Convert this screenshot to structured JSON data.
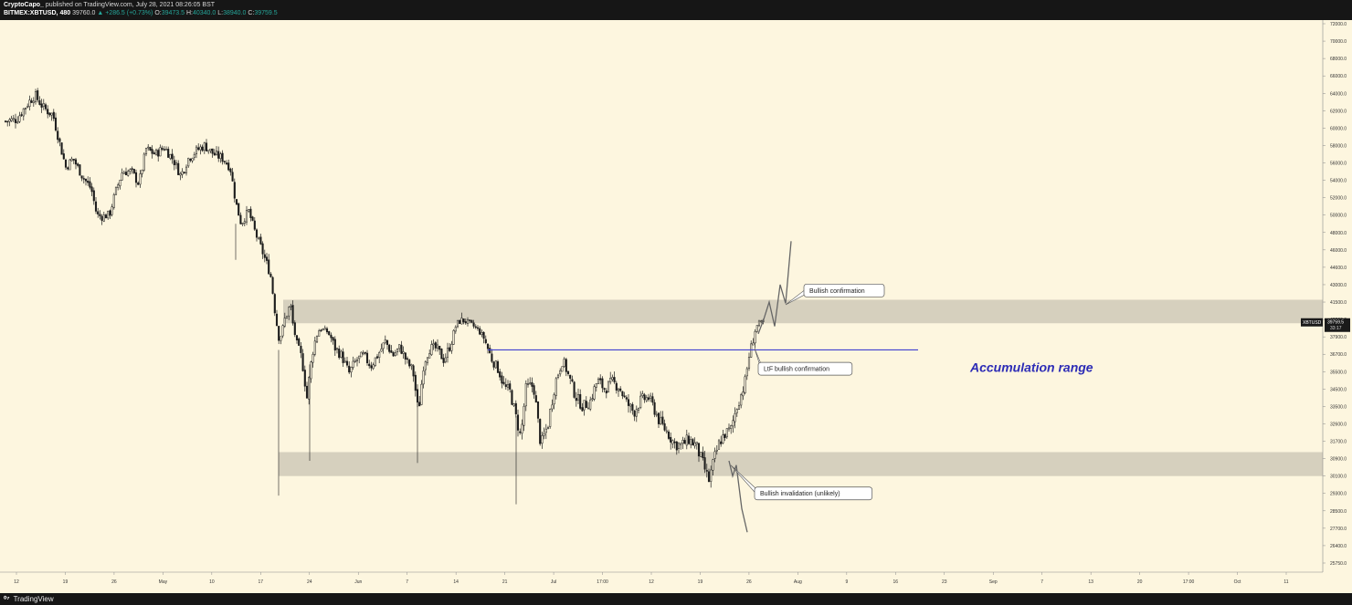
{
  "header": {
    "author": "CryptoCapo_",
    "published_text": "published on TradingView.com, July 28, 2021 08:26:05 BST",
    "symbol": "BITMEX:XBTUSD, 480",
    "last": "39760.0",
    "change": "▲ +286.5 (+0.73%)",
    "ohlc": [
      {
        "label": "O:",
        "value": "39473.5"
      },
      {
        "label": "H:",
        "value": "40340.0"
      },
      {
        "label": "L:",
        "value": "38940.0"
      },
      {
        "label": "C:",
        "value": "39759.5"
      }
    ]
  },
  "footer": {
    "logo_glyph": "⁰⁷",
    "brand": "TradingView"
  },
  "colors": {
    "background": "#fdf6df",
    "bar_color": "#1c1c1c",
    "zone_fill": "#cfc9b8",
    "line_blue": "#4040d0",
    "range_text": "#2d2cb6",
    "axis_bg": "#fdf6df",
    "label_bg": "#1a1a1a"
  },
  "chart_data": {
    "type": "candlestick",
    "symbol": "BITMEX:XBTUSD",
    "timeframe": "480",
    "y_axis": {
      "ticks": [
        "72000.0",
        "70000.0",
        "68000.0",
        "66000.0",
        "64000.0",
        "62000.0",
        "60000.0",
        "58000.0",
        "56000.0",
        "54000.0",
        "52000.0",
        "50000.0",
        "48000.0",
        "46000.0",
        "44600.0",
        "43000.0",
        "41500.0",
        "40200.0",
        "37900.0",
        "36700.0",
        "35500.0",
        "34500.0",
        "33500.0",
        "32600.0",
        "31700.0",
        "30900.0",
        "30100.0",
        "29300.0",
        "28500.0",
        "27700.0",
        "26400.0",
        "25750.0"
      ],
      "price_label_symbol": "XBTUSD",
      "price_label_value": "39759.5",
      "price_label_timer": "33:17",
      "price_label_level": 39759.5
    },
    "x_axis": {
      "ticks": [
        "12",
        "19",
        "26",
        "May",
        "10",
        "17",
        "24",
        "Jun",
        "7",
        "14",
        "21",
        "Jul",
        "17:00",
        "12",
        "19",
        "26",
        "Aug",
        "9",
        "16",
        "23",
        "Sep",
        "7",
        "13",
        "20",
        "17:00",
        "Oct",
        "11"
      ]
    },
    "series": {
      "close_path": [
        {
          "x": 6,
          "y": 60800
        },
        {
          "x": 18,
          "y": 61000
        },
        {
          "x": 30,
          "y": 62800
        },
        {
          "x": 38,
          "y": 63800
        },
        {
          "x": 48,
          "y": 62300
        },
        {
          "x": 58,
          "y": 61500
        },
        {
          "x": 66,
          "y": 58000
        },
        {
          "x": 72,
          "y": 55500
        },
        {
          "x": 80,
          "y": 56500
        },
        {
          "x": 90,
          "y": 54500
        },
        {
          "x": 100,
          "y": 53000
        },
        {
          "x": 106,
          "y": 50000
        },
        {
          "x": 112,
          "y": 49800
        },
        {
          "x": 120,
          "y": 50100
        },
        {
          "x": 126,
          "y": 52500
        },
        {
          "x": 134,
          "y": 55000
        },
        {
          "x": 144,
          "y": 55000
        },
        {
          "x": 152,
          "y": 53600
        },
        {
          "x": 160,
          "y": 57600
        },
        {
          "x": 170,
          "y": 57000
        },
        {
          "x": 180,
          "y": 57800
        },
        {
          "x": 190,
          "y": 56300
        },
        {
          "x": 198,
          "y": 54500
        },
        {
          "x": 206,
          "y": 56500
        },
        {
          "x": 216,
          "y": 57500
        },
        {
          "x": 224,
          "y": 58000
        },
        {
          "x": 234,
          "y": 57000
        },
        {
          "x": 244,
          "y": 56500
        },
        {
          "x": 252,
          "y": 55500
        },
        {
          "x": 258,
          "y": 51500
        },
        {
          "x": 264,
          "y": 49000
        },
        {
          "x": 272,
          "y": 50500
        },
        {
          "x": 280,
          "y": 47800
        },
        {
          "x": 288,
          "y": 45700
        },
        {
          "x": 296,
          "y": 44000
        },
        {
          "x": 302,
          "y": 40200
        },
        {
          "x": 306,
          "y": 37400
        },
        {
          "x": 312,
          "y": 40300
        },
        {
          "x": 318,
          "y": 41300
        },
        {
          "x": 324,
          "y": 37500
        },
        {
          "x": 330,
          "y": 36500
        },
        {
          "x": 336,
          "y": 34000
        },
        {
          "x": 342,
          "y": 36800
        },
        {
          "x": 350,
          "y": 39000
        },
        {
          "x": 358,
          "y": 38600
        },
        {
          "x": 366,
          "y": 37200
        },
        {
          "x": 374,
          "y": 36600
        },
        {
          "x": 382,
          "y": 35400
        },
        {
          "x": 390,
          "y": 36300
        },
        {
          "x": 398,
          "y": 36600
        },
        {
          "x": 406,
          "y": 35900
        },
        {
          "x": 414,
          "y": 36700
        },
        {
          "x": 422,
          "y": 37600
        },
        {
          "x": 430,
          "y": 36600
        },
        {
          "x": 438,
          "y": 37200
        },
        {
          "x": 446,
          "y": 36100
        },
        {
          "x": 452,
          "y": 35600
        },
        {
          "x": 458,
          "y": 33100
        },
        {
          "x": 464,
          "y": 36100
        },
        {
          "x": 470,
          "y": 37100
        },
        {
          "x": 478,
          "y": 37100
        },
        {
          "x": 486,
          "y": 36300
        },
        {
          "x": 494,
          "y": 37500
        },
        {
          "x": 500,
          "y": 39700
        },
        {
          "x": 506,
          "y": 40100
        },
        {
          "x": 514,
          "y": 39700
        },
        {
          "x": 522,
          "y": 39000
        },
        {
          "x": 530,
          "y": 37800
        },
        {
          "x": 538,
          "y": 36400
        },
        {
          "x": 546,
          "y": 35600
        },
        {
          "x": 552,
          "y": 34600
        },
        {
          "x": 558,
          "y": 34400
        },
        {
          "x": 564,
          "y": 33100
        },
        {
          "x": 570,
          "y": 31900
        },
        {
          "x": 576,
          "y": 34600
        },
        {
          "x": 584,
          "y": 34700
        },
        {
          "x": 592,
          "y": 31500
        },
        {
          "x": 600,
          "y": 32600
        },
        {
          "x": 608,
          "y": 34900
        },
        {
          "x": 616,
          "y": 36300
        },
        {
          "x": 622,
          "y": 35300
        },
        {
          "x": 630,
          "y": 34100
        },
        {
          "x": 638,
          "y": 33500
        },
        {
          "x": 646,
          "y": 33800
        },
        {
          "x": 654,
          "y": 35000
        },
        {
          "x": 662,
          "y": 34500
        },
        {
          "x": 670,
          "y": 34900
        },
        {
          "x": 678,
          "y": 34600
        },
        {
          "x": 686,
          "y": 33700
        },
        {
          "x": 694,
          "y": 33200
        },
        {
          "x": 702,
          "y": 33900
        },
        {
          "x": 710,
          "y": 34000
        },
        {
          "x": 716,
          "y": 33400
        },
        {
          "x": 722,
          "y": 32700
        },
        {
          "x": 730,
          "y": 32200
        },
        {
          "x": 738,
          "y": 31600
        },
        {
          "x": 746,
          "y": 31500
        },
        {
          "x": 754,
          "y": 31800
        },
        {
          "x": 762,
          "y": 31500
        },
        {
          "x": 770,
          "y": 30600
        },
        {
          "x": 776,
          "y": 29900
        },
        {
          "x": 782,
          "y": 30900
        },
        {
          "x": 788,
          "y": 31700
        },
        {
          "x": 794,
          "y": 32100
        },
        {
          "x": 800,
          "y": 32300
        },
        {
          "x": 806,
          "y": 33400
        },
        {
          "x": 812,
          "y": 34300
        },
        {
          "x": 816,
          "y": 35000
        },
        {
          "x": 820,
          "y": 36600
        },
        {
          "x": 824,
          "y": 37600
        },
        {
          "x": 828,
          "y": 39300
        },
        {
          "x": 832,
          "y": 39700
        },
        {
          "x": 836,
          "y": 39760
        }
      ],
      "projection_up": [
        {
          "x": 830,
          "y": 38300
        },
        {
          "x": 836,
          "y": 40200
        },
        {
          "x": 842,
          "y": 41500
        },
        {
          "x": 848,
          "y": 39300
        },
        {
          "x": 854,
          "y": 43000
        },
        {
          "x": 860,
          "y": 41400
        },
        {
          "x": 866,
          "y": 47000
        }
      ],
      "projection_down": [
        {
          "x": 798,
          "y": 30800
        },
        {
          "x": 802,
          "y": 30100
        },
        {
          "x": 806,
          "y": 30600
        },
        {
          "x": 812,
          "y": 28600
        },
        {
          "x": 818,
          "y": 27400
        }
      ]
    },
    "zones": [
      {
        "name": "upper-resistance-zone",
        "y_low": 39700,
        "y_high": 41700,
        "x_start": 310
      },
      {
        "name": "lower-support-zone",
        "y_low": 30100,
        "y_high": 31200,
        "x_start": 305
      }
    ],
    "horizontal_lines": [
      {
        "name": "ltf-confirmation-line",
        "y": 37000,
        "x_start": 534,
        "x_end": 1005
      }
    ],
    "annotations": [
      {
        "id": "bullish-confirmation",
        "text": "Bullish confirmation",
        "anchor": {
          "x": 860,
          "y": 41300
        },
        "box": {
          "x": 880,
          "y": 42500
        }
      },
      {
        "id": "ltf-bullish-confirmation",
        "text": "LtF bullish confirmation",
        "anchor": {
          "x": 826,
          "y": 37100
        },
        "box": {
          "x": 830,
          "y": 35700
        }
      },
      {
        "id": "bullish-invalidation",
        "text": "Bullish invalidation (unlikely)",
        "anchor": {
          "x": 800,
          "y": 30600
        },
        "box": {
          "x": 826,
          "y": 29300
        }
      },
      {
        "id": "accumulation-range",
        "text": "Accumulation range",
        "style": "label",
        "box": {
          "x": 1062,
          "y": 35800
        }
      }
    ]
  }
}
